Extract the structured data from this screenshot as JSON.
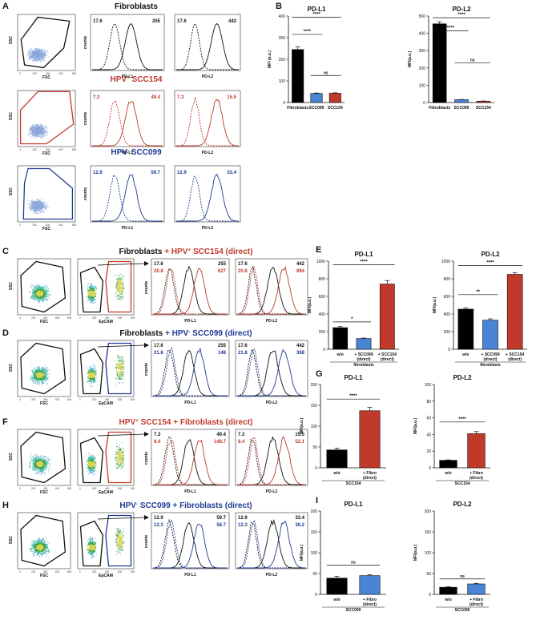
{
  "colors": {
    "black": "#111111",
    "red": "#c0392b",
    "blue": "#1f3a93",
    "bar_black": "#000000",
    "bar_blue": "#4a84d4",
    "bar_red": "#c0392b",
    "gray": "#888888"
  },
  "panels": {
    "A": {
      "letter": "A",
      "titles": [
        {
          "parts": [
            {
              "t": "Fibroblasts",
              "c": "black"
            }
          ]
        },
        {
          "parts": [
            {
              "t": "HPV",
              "c": "red"
            },
            {
              "t": "+",
              "c": "red",
              "sup": true
            },
            {
              "t": " SCC154",
              "c": "red"
            }
          ]
        },
        {
          "parts": [
            {
              "t": "HPV",
              "c": "blue"
            },
            {
              "t": "-",
              "c": "blue",
              "sup": true
            },
            {
              "t": " SCC099",
              "c": "blue"
            }
          ]
        }
      ],
      "rows": [
        {
          "color": "black",
          "pdl1": [
            "17.6",
            "255"
          ],
          "pdl2": [
            "17.6",
            "442"
          ]
        },
        {
          "color": "red",
          "pdl1": [
            "7.3",
            "49.4"
          ],
          "pdl2": [
            "7.3",
            "15.5"
          ]
        },
        {
          "color": "blue",
          "pdl1": [
            "12.9",
            "59.7"
          ],
          "pdl2": [
            "12.9",
            "33.4"
          ]
        }
      ]
    },
    "C": {
      "letter": "C",
      "title": {
        "parts": [
          {
            "t": "Fibroblasts ",
            "c": "black"
          },
          {
            "t": "+ HPV",
            "c": "red"
          },
          {
            "t": "+",
            "c": "red",
            "sup": true
          },
          {
            "t": " SCC154 (direct)",
            "c": "red"
          }
        ]
      },
      "second": "red",
      "pdl1": [
        "17.6",
        "255",
        "20.8",
        "627"
      ],
      "pdl2": [
        "17.6",
        "442",
        "20.8",
        "894"
      ],
      "first": "black"
    },
    "D": {
      "letter": "D",
      "title": {
        "parts": [
          {
            "t": "Fibroblasts ",
            "c": "black"
          },
          {
            "t": "+ HPV",
            "c": "blue"
          },
          {
            "t": "-",
            "c": "blue",
            "sup": true
          },
          {
            "t": " SCC099 (direct)",
            "c": "blue"
          }
        ]
      },
      "second": "blue",
      "pdl1": [
        "17.6",
        "255",
        "21.8",
        "148"
      ],
      "pdl2": [
        "17.6",
        "442",
        "21.8",
        "368"
      ],
      "first": "black"
    },
    "F": {
      "letter": "F",
      "title": {
        "parts": [
          {
            "t": "HPV",
            "c": "red"
          },
          {
            "t": "+",
            "c": "red",
            "sup": true
          },
          {
            "t": " SCC154 ",
            "c": "red"
          },
          {
            "t": "+ Fibroblasts (direct)",
            "c": "red"
          }
        ]
      },
      "second": "red",
      "pdl1": [
        "7.3",
        "49.4",
        "8.4",
        "148.7"
      ],
      "pdl2": [
        "7.3",
        "15.5",
        "8.4",
        "52.1"
      ],
      "first": "black"
    },
    "H": {
      "letter": "H",
      "title": {
        "parts": [
          {
            "t": "HPV",
            "c": "blue"
          },
          {
            "t": "-",
            "c": "blue",
            "sup": true
          },
          {
            "t": " SCC099 ",
            "c": "blue"
          },
          {
            "t": "+ Fibroblasts (direct)",
            "c": "blue"
          }
        ]
      },
      "second": "blue",
      "pdl1": [
        "12.9",
        "59.7",
        "12.3",
        "56.7"
      ],
      "pdl2": [
        "12.9",
        "33.4",
        "12.3",
        "36.2"
      ],
      "first": "black"
    }
  },
  "axis_labels": {
    "ssc": "SSC",
    "fsc": "FSC",
    "counts": "counts",
    "pdl1": "PD-L1",
    "pdl2": "PD-L2",
    "epcam": "EpCAM",
    "mfi": "MFI(a.u.)",
    "mfi_alt": "MFI (a.u.)"
  },
  "chart_data": [
    {
      "panel": "B",
      "type": "bar",
      "title": "PD-L1",
      "ylabel": "MFI (a.u.)",
      "ylim": [
        0,
        400
      ],
      "yticks": [
        0,
        100,
        200,
        300,
        400
      ],
      "categories": [
        "Fibroblasts",
        "SCC099",
        "SCC154"
      ],
      "values": [
        245,
        42,
        43
      ],
      "errors": [
        12,
        2,
        2
      ],
      "colors": [
        "bar_black",
        "bar_blue",
        "bar_red"
      ],
      "significance": [
        {
          "from": 0,
          "to": 2,
          "label": "****",
          "level": 395
        },
        {
          "from": 0,
          "to": 1,
          "label": "****",
          "level": 315
        },
        {
          "from": 1,
          "to": 2,
          "label": "ns",
          "level": 125
        }
      ]
    },
    {
      "panel": "B",
      "type": "bar",
      "title": "PD-L2",
      "ylabel": "MFI(a.u.)",
      "ylim": [
        0,
        500
      ],
      "yticks": [
        0,
        100,
        200,
        300,
        400,
        500
      ],
      "categories": [
        "Fibroblasts",
        "SCC099",
        "SCC154"
      ],
      "values": [
        455,
        17,
        8
      ],
      "errors": [
        12,
        1,
        1
      ],
      "colors": [
        "bar_black",
        "bar_blue",
        "bar_red"
      ],
      "significance": [
        {
          "from": 0,
          "to": 2,
          "label": "****",
          "level": 490
        },
        {
          "from": 0,
          "to": 1,
          "label": "****",
          "level": 415
        },
        {
          "from": 1,
          "to": 2,
          "label": "ns",
          "level": 230
        }
      ]
    },
    {
      "panel": "E",
      "type": "bar",
      "title": "PD-L1",
      "ylabel": "MFI(a.u.)",
      "ylim": [
        0,
        1000
      ],
      "yticks": [
        0,
        200,
        400,
        600,
        800,
        1000
      ],
      "categories": [
        "w/o",
        "+ SCC099\n(direct)",
        "+ SCC154\n(direct)"
      ],
      "group_label": "fibroblasts",
      "values": [
        245,
        122,
        740
      ],
      "errors": [
        12,
        5,
        40
      ],
      "colors": [
        "bar_black",
        "bar_blue",
        "bar_red"
      ],
      "significance": [
        {
          "from": 0,
          "to": 2,
          "label": "****",
          "level": 960
        },
        {
          "from": 0,
          "to": 1,
          "label": "*",
          "level": 310
        }
      ]
    },
    {
      "panel": "E",
      "type": "bar",
      "title": "PD-L2",
      "ylabel": "MFI(a.u.)",
      "ylim": [
        0,
        1000
      ],
      "yticks": [
        0,
        200,
        400,
        600,
        800,
        1000
      ],
      "categories": [
        "w/o",
        "+ SCC099\n(direct)",
        "+ SCC154\n(direct)"
      ],
      "group_label": "fibroblasts",
      "values": [
        455,
        330,
        850
      ],
      "errors": [
        15,
        15,
        20
      ],
      "colors": [
        "bar_black",
        "bar_blue",
        "bar_red"
      ],
      "significance": [
        {
          "from": 0,
          "to": 2,
          "label": "****",
          "level": 950
        },
        {
          "from": 0,
          "to": 1,
          "label": "**",
          "level": 620
        }
      ]
    },
    {
      "panel": "G",
      "type": "bar",
      "title": "PD-L1",
      "ylabel": "MFI(a.u.)",
      "ylim": [
        0,
        200
      ],
      "yticks": [
        0,
        50,
        100,
        150,
        200
      ],
      "categories": [
        "w/o",
        "+ Fibro\n(direct)"
      ],
      "group_label": "SCC154",
      "values": [
        43,
        137
      ],
      "errors": [
        4,
        8
      ],
      "colors": [
        "bar_black",
        "bar_red"
      ],
      "significance": [
        {
          "from": 0,
          "to": 1,
          "label": "****",
          "level": 165
        }
      ]
    },
    {
      "panel": "G",
      "type": "bar",
      "title": "PD-L2",
      "ylabel": "MFI(a.u.)",
      "ylim": [
        0,
        100
      ],
      "yticks": [
        0,
        20,
        40,
        60,
        80,
        100
      ],
      "categories": [
        "w/o",
        "+ Fibro\n(direct)"
      ],
      "group_label": "SCC154",
      "values": [
        9,
        41
      ],
      "errors": [
        0.5,
        2.5
      ],
      "colors": [
        "bar_black",
        "bar_red"
      ],
      "significance": [
        {
          "from": 0,
          "to": 1,
          "label": "****",
          "level": 55
        }
      ]
    },
    {
      "panel": "I",
      "type": "bar",
      "title": "PD-L1",
      "ylabel": "MFI(a.u.)",
      "ylim": [
        0,
        200
      ],
      "yticks": [
        0,
        50,
        100,
        150,
        200
      ],
      "categories": [
        "w/o",
        "+ Fibro\n(direct)"
      ],
      "group_label": "SCC099",
      "values": [
        39,
        45
      ],
      "errors": [
        4,
        2
      ],
      "colors": [
        "bar_black",
        "bar_blue"
      ],
      "significance": [
        {
          "from": 0,
          "to": 1,
          "label": "ns",
          "level": 70
        }
      ]
    },
    {
      "panel": "I",
      "type": "bar",
      "title": "PD-L2",
      "ylabel": "MFI(a.u.)",
      "ylim": [
        0,
        200
      ],
      "yticks": [
        0,
        50,
        100,
        150,
        200
      ],
      "categories": [
        "w/o",
        "+ Fibro\n(direct)"
      ],
      "group_label": "SCC099",
      "values": [
        17,
        25
      ],
      "errors": [
        1.5,
        1.5
      ],
      "colors": [
        "bar_black",
        "bar_blue"
      ],
      "significance": [
        {
          "from": 0,
          "to": 1,
          "label": "ns",
          "level": 37
        }
      ]
    }
  ],
  "letters": {
    "B": "B",
    "E": "E",
    "G": "G",
    "I": "I"
  }
}
